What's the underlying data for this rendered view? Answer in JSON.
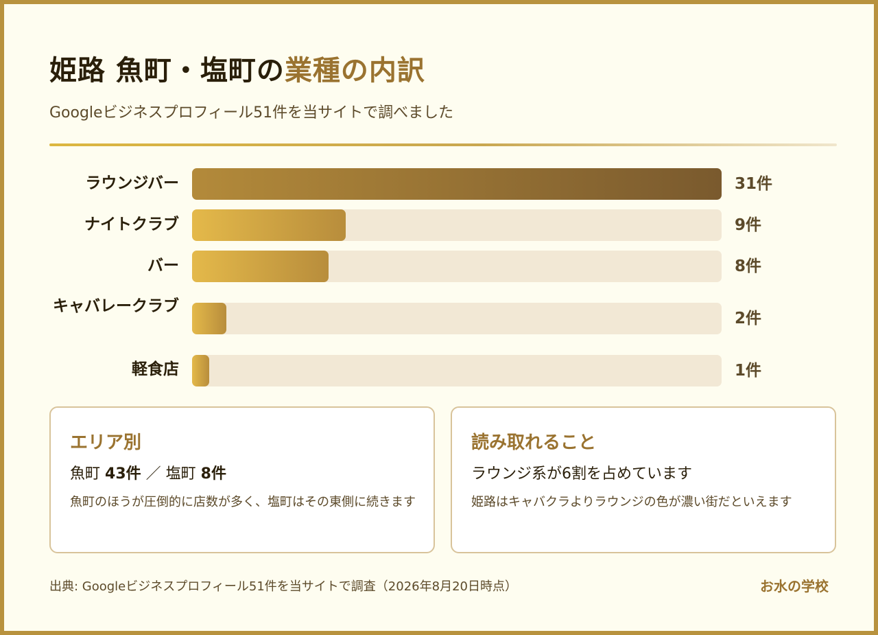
{
  "header": {
    "title_main": "姫路 魚町・塩町の",
    "title_accent": "業種の内訳",
    "subtitle": "Googleビジネスプロフィール51件を当サイトで調べました"
  },
  "chart_data": {
    "type": "bar",
    "orientation": "horizontal",
    "categories": [
      "ラウンジバー",
      "ナイトクラブ",
      "バー",
      "キャバレークラブ",
      "軽食店"
    ],
    "values": [
      31,
      9,
      8,
      2,
      1
    ],
    "value_labels": [
      "31件",
      "9件",
      "8件",
      "2件",
      "1件"
    ],
    "xlim": [
      0,
      31
    ],
    "grid": false,
    "colors": {
      "top": "#7a5a2e",
      "rest": "#e4b94a",
      "track": "#f2e8d5"
    }
  },
  "cards": {
    "area": {
      "title": "エリア別",
      "uo_label": "魚町",
      "uo_count": "43件",
      "sep": "／",
      "shio_label": "塩町",
      "shio_count": "8件",
      "body": "魚町のほうが圧倒的に店数が多く、塩町はその東側に続きます"
    },
    "insight": {
      "title": "読み取れること",
      "headline": "ラウンジ系が6割を占めています",
      "body": "姫路はキャバクラよりラウンジの色が濃い街だといえます"
    }
  },
  "footer": {
    "source": "出典: Googleビジネスプロフィール51件を当サイトで調査（2026年8月20日時点）",
    "brand": "お水の学校"
  }
}
